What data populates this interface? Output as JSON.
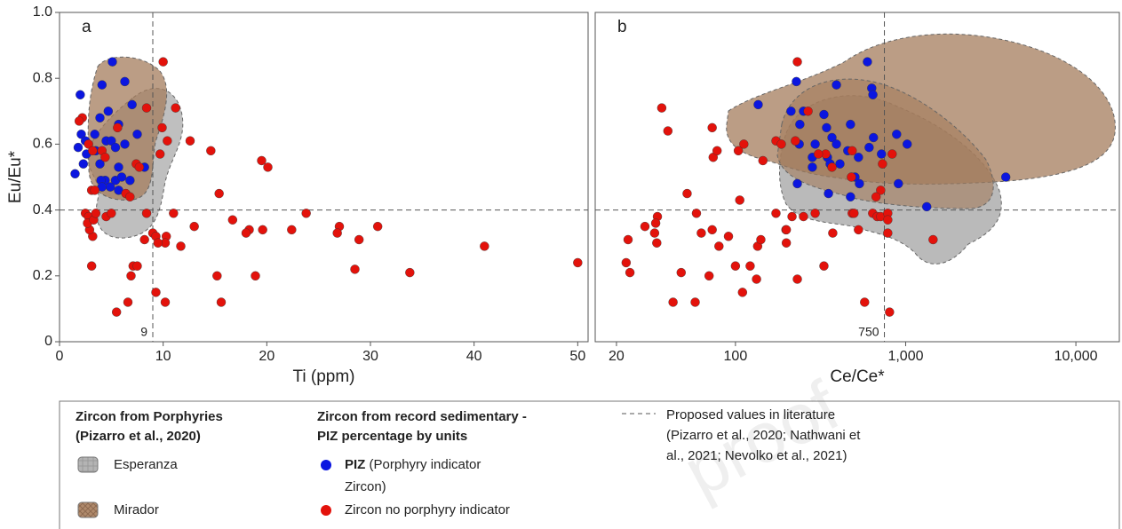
{
  "chart_data": [
    {
      "type": "scatter",
      "title": "a",
      "xlabel": "Ti (ppm)",
      "ylabel": "Eu/Eu*",
      "xlim": [
        0,
        51
      ],
      "ylim": [
        0,
        1
      ],
      "xticks": [
        0,
        10,
        20,
        30,
        40,
        50
      ],
      "yticks": [
        0,
        0.2,
        0.4,
        0.6,
        0.8,
        {
          "value": 1,
          "label": "1.0"
        }
      ],
      "vlines": [
        9
      ],
      "hlines": [
        0.4
      ],
      "series": [
        {
          "name": "PIZ",
          "color": "#0b16e0",
          "x": [
            5.1,
            2.0,
            4.1,
            6.3,
            4.7,
            7.0,
            3.9,
            5.7,
            3.4,
            2.1,
            2.5,
            4.5,
            5.0,
            7.5,
            1.8,
            3.5,
            5.4,
            6.3,
            2.6,
            3.9,
            2.3,
            5.7,
            8.2,
            1.5,
            4.4,
            4.0,
            5.4,
            6.8,
            6.0,
            4.9,
            5.7,
            4.1
          ],
          "values": [
            0.85,
            0.75,
            0.78,
            0.79,
            0.7,
            0.72,
            0.68,
            0.66,
            0.63,
            0.63,
            0.61,
            0.61,
            0.61,
            0.63,
            0.59,
            0.58,
            0.59,
            0.6,
            0.57,
            0.54,
            0.54,
            0.53,
            0.53,
            0.51,
            0.49,
            0.49,
            0.49,
            0.49,
            0.5,
            0.47,
            0.46,
            0.47
          ]
        },
        {
          "name": "Zircon no porphyry indicator",
          "color": "#e3120b",
          "x": [
            50,
            41,
            33.8,
            30.7,
            28.9,
            28.5,
            27,
            26.8,
            23.8,
            22.4,
            20.1,
            19.5,
            19.6,
            18.3,
            18,
            18.9,
            16.7,
            15.6,
            15.4,
            15.2,
            14.6,
            12.6,
            13.0,
            11.2,
            11.7,
            11,
            10,
            9.9,
            10.4,
            9.7,
            10.3,
            10.2,
            10.2,
            9.3,
            9.0,
            9.3,
            9.5,
            8.4,
            8.4,
            8.2,
            7.4,
            7.7,
            7.1,
            7.5,
            6.9,
            6.6,
            6.4,
            6.8,
            5.5,
            4.5,
            5.0,
            3.2,
            2.9,
            3.1,
            2.5,
            2.8,
            2.7,
            3.3,
            3.5,
            3.1,
            2.2,
            1.9,
            2.8,
            3.2,
            4.1,
            4.4,
            5.6,
            3.4
          ],
          "values": [
            0.24,
            0.29,
            0.21,
            0.35,
            0.31,
            0.22,
            0.35,
            0.33,
            0.39,
            0.34,
            0.53,
            0.55,
            0.34,
            0.34,
            0.33,
            0.2,
            0.37,
            0.12,
            0.45,
            0.2,
            0.58,
            0.61,
            0.35,
            0.71,
            0.29,
            0.39,
            0.85,
            0.65,
            0.61,
            0.57,
            0.32,
            0.3,
            0.12,
            0.15,
            0.33,
            0.32,
            0.3,
            0.71,
            0.39,
            0.31,
            0.54,
            0.53,
            0.23,
            0.23,
            0.2,
            0.12,
            0.45,
            0.44,
            0.09,
            0.38,
            0.39,
            0.32,
            0.34,
            0.23,
            0.39,
            0.38,
            0.36,
            0.37,
            0.39,
            0.46,
            0.68,
            0.67,
            0.6,
            0.58,
            0.58,
            0.56,
            0.65,
            0.46
          ]
        }
      ]
    },
    {
      "type": "scatter",
      "title": "b",
      "xlabel": "Ce/Ce*",
      "xscale": "log",
      "xlim": [
        15,
        18000
      ],
      "ylim": [
        0,
        1
      ],
      "xticks": [
        20,
        100,
        {
          "value": 1000,
          "label": "1,000"
        },
        {
          "value": 10000,
          "label": "10,000"
        }
      ],
      "vlines": [
        750
      ],
      "hlines": [
        0.4
      ],
      "series": [
        {
          "name": "PIZ",
          "color": "#0b16e0",
          "x": [
            596,
            228,
            392,
            632,
            642,
            136,
            212,
            251,
            331,
            239,
            474,
            343,
            647,
            885,
            1021,
            369,
            392,
            294,
            237,
            457,
            610,
            528,
            347,
            360,
            283,
            721,
            283,
            411,
            504,
            535,
            906,
            3873,
            1330,
            352,
            474,
            231
          ],
          "values": [
            0.85,
            0.79,
            0.78,
            0.77,
            0.75,
            0.72,
            0.7,
            0.7,
            0.69,
            0.66,
            0.66,
            0.65,
            0.62,
            0.63,
            0.6,
            0.62,
            0.6,
            0.6,
            0.6,
            0.58,
            0.59,
            0.56,
            0.56,
            0.54,
            0.56,
            0.57,
            0.53,
            0.54,
            0.5,
            0.48,
            0.48,
            0.5,
            0.41,
            0.45,
            0.44,
            0.48
          ]
        },
        {
          "name": "Zircon no porphyry indicator",
          "color": "#e3120b",
          "x": [
            22.8,
            24,
            23.4,
            29.4,
            33.5,
            34.8,
            34,
            34.5,
            36.9,
            40.1,
            43,
            48,
            52,
            58,
            59,
            63,
            70,
            73,
            73,
            74,
            78,
            80,
            91,
            100,
            106,
            104,
            112,
            110,
            122,
            133,
            135,
            141,
            145,
            173,
            198,
            199,
            199,
            215,
            231,
            231,
            173,
            225,
            186,
            267,
            294,
            251,
            331,
            373,
            339,
            369,
            480,
            485,
            497,
            485,
            528,
            574,
            640,
            680,
            713,
            713,
            785,
            785,
            785,
            804,
            833,
            1449,
            731,
            670,
            307
          ],
          "values": [
            0.24,
            0.21,
            0.31,
            0.35,
            0.33,
            0.38,
            0.36,
            0.3,
            0.71,
            0.64,
            0.12,
            0.21,
            0.45,
            0.12,
            0.39,
            0.33,
            0.2,
            0.65,
            0.34,
            0.56,
            0.58,
            0.29,
            0.32,
            0.23,
            0.43,
            0.58,
            0.6,
            0.15,
            0.23,
            0.19,
            0.29,
            0.31,
            0.55,
            0.39,
            0.34,
            0.34,
            0.3,
            0.38,
            0.19,
            0.85,
            0.61,
            0.61,
            0.6,
            0.7,
            0.39,
            0.38,
            0.23,
            0.33,
            0.57,
            0.53,
            0.5,
            0.39,
            0.39,
            0.58,
            0.34,
            0.12,
            0.39,
            0.38,
            0.38,
            0.46,
            0.39,
            0.37,
            0.33,
            0.09,
            0.57,
            0.31,
            0.54,
            0.44,
            0.57
          ]
        }
      ]
    }
  ],
  "legend": {
    "porphyry_heading": [
      "Zircon from Porphyries",
      "(Pizarro et al., 2020)"
    ],
    "regions": [
      "Esperanza",
      "Mirador"
    ],
    "sedimentary_heading": [
      "Zircon from record sedimentary -",
      "PIZ percentage by units"
    ],
    "piz_note": [
      "(Porphyry indicator",
      "Zircon)"
    ],
    "reference": [
      "Proposed values in literature",
      "(Pizarro et al., 2020; Nathwani et",
      "al., 2021; Nevolko et al., 2021)"
    ]
  },
  "watermark": "proof"
}
